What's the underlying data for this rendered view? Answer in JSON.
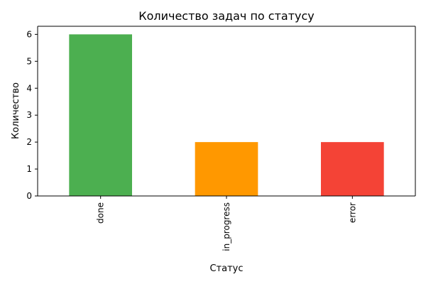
{
  "chart_data": {
    "type": "bar",
    "title": "Количество задач по статусу",
    "xlabel": "Статус",
    "ylabel": "Количество",
    "categories": [
      "done",
      "in_progress",
      "error"
    ],
    "values": [
      6,
      2,
      2
    ],
    "colors": [
      "#4caf50",
      "#ff9800",
      "#f44336"
    ],
    "ylim": [
      0,
      6.3
    ],
    "yticks": [
      0,
      1,
      2,
      3,
      4,
      5,
      6
    ],
    "xtick_rotation": "vertical",
    "grid": false,
    "legend": "none"
  }
}
